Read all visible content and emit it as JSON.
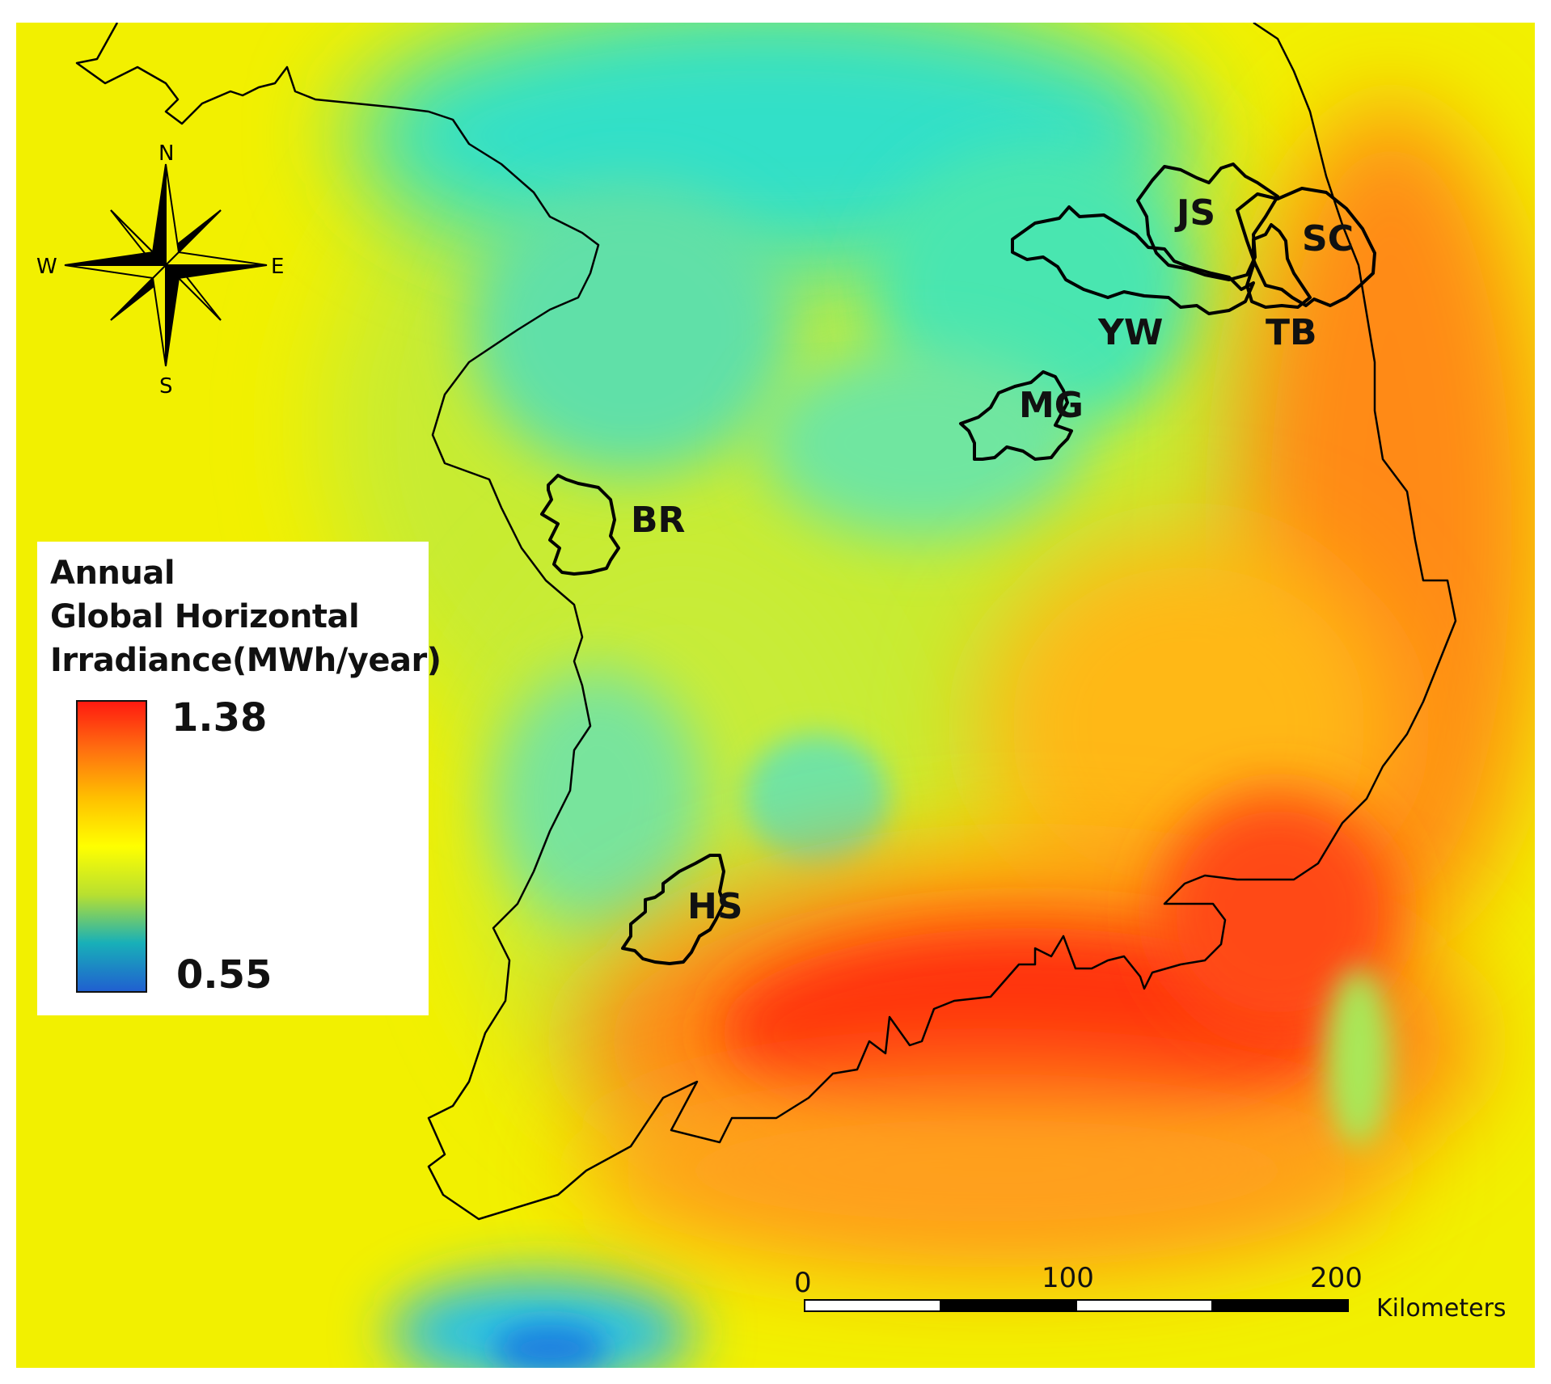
{
  "compass": {
    "north": "N",
    "south": "S",
    "east": "E",
    "west": "W"
  },
  "regions": {
    "js": "JS",
    "sc": "SC",
    "yw": "YW",
    "tb": "TB",
    "mg": "MG",
    "br": "BR",
    "hs": "HS"
  },
  "legend": {
    "title_line1": "Annual",
    "title_line2": "Global Horizontal",
    "title_line3": "Irradiance(MWh/year)",
    "max_value": "1.38",
    "min_value": "0.55",
    "max": 1.38,
    "min": 0.55,
    "ramp_colors": [
      "#2060d0",
      "#18b0b8",
      "#b8e030",
      "#ffff00",
      "#ffc000",
      "#ff7010",
      "#ff1a10"
    ]
  },
  "scale_bar": {
    "tick_0": "0",
    "tick_100": "100",
    "tick_200": "200",
    "unit": "Kilometers"
  },
  "colors": {
    "ocean_yellow": "#f2f000",
    "high_irradiance": "#ff3a12",
    "mid_irradiance": "#ff9a14",
    "low_irradiance": "#2fe0c8",
    "outline": "#000000"
  }
}
